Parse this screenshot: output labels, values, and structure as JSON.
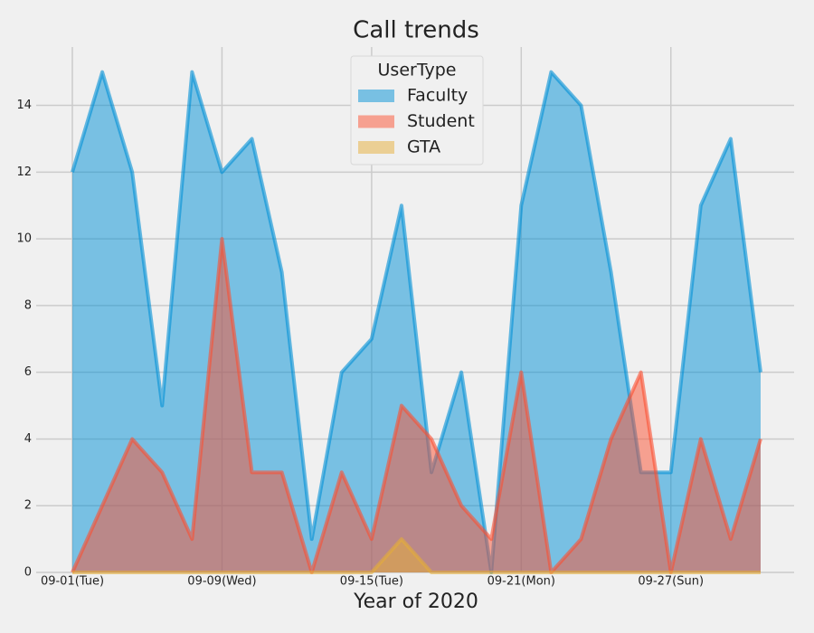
{
  "chart_data": {
    "type": "area",
    "title": "Call trends",
    "xlabel": "Year of 2020",
    "categories": [
      "09-01(Tue)",
      null,
      null,
      null,
      null,
      "09-09(Wed)",
      null,
      null,
      null,
      null,
      "09-15(Tue)",
      null,
      null,
      null,
      null,
      "09-21(Mon)",
      null,
      null,
      null,
      null,
      "09-27(Sun)",
      null,
      null,
      null
    ],
    "series": [
      {
        "name": "Faculty",
        "color": "#008fd5",
        "values": [
          12,
          15,
          12,
          5,
          15,
          12,
          13,
          9,
          1,
          6,
          7,
          11,
          3,
          6,
          0,
          11,
          15,
          14,
          9,
          3,
          3,
          11,
          13,
          6
        ]
      },
      {
        "name": "Student",
        "color": "#fc4f30",
        "values": [
          0,
          2,
          4,
          3,
          1,
          10,
          3,
          3,
          0,
          3,
          1,
          5,
          4,
          2,
          1,
          6,
          0,
          1,
          4,
          6,
          0,
          4,
          1,
          4
        ]
      },
      {
        "name": "GTA",
        "color": "#e5ae38",
        "values": [
          0,
          0,
          0,
          0,
          0,
          0,
          0,
          0,
          0,
          0,
          0,
          1,
          0,
          0,
          0,
          0,
          0,
          0,
          0,
          0,
          0,
          0,
          0,
          0
        ]
      }
    ],
    "legend_title": "UserType",
    "legend": "upper center",
    "ylim": [
      0,
      15.75
    ],
    "yticks": [
      0,
      2,
      4,
      6,
      8,
      10,
      12,
      14
    ],
    "grid": true
  }
}
